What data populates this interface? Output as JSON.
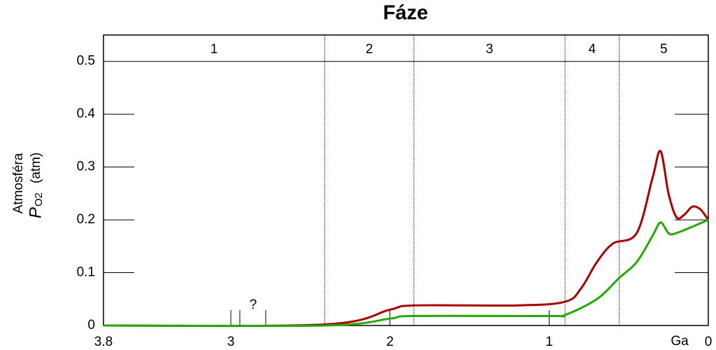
{
  "chart_data": {
    "type": "line",
    "title": "Fáze",
    "x_label": "Ga",
    "y_label": "Atmosféra",
    "y_label_symbol": "P",
    "y_label_subscript": "O2",
    "y_label_unit": "(atm)",
    "annotation": "?",
    "xlim": [
      3.8,
      0
    ],
    "ylim": [
      0,
      0.55
    ],
    "xticks": [
      {
        "value": 3.8,
        "label": "3.8"
      },
      3,
      2,
      1,
      0
    ],
    "yticks": [
      0,
      0.1,
      0.2,
      0.3,
      0.4,
      0.5
    ],
    "phase_labels": [
      "1",
      "2",
      "3",
      "4",
      "5"
    ],
    "phase_boundaries": [
      2.41,
      1.85,
      0.9,
      0.56
    ],
    "series": [
      {
        "color": "#aa0000",
        "x": [
          3.8,
          2.41,
          2.0,
          1.85,
          1.2,
          0.9,
          0.8,
          0.7,
          0.6,
          0.45,
          0.35,
          0.3,
          0.25,
          0.2,
          0.15,
          0.1,
          0.05,
          0
        ],
        "values": [
          0,
          0.002,
          0.03,
          0.038,
          0.038,
          0.045,
          0.07,
          0.12,
          0.155,
          0.175,
          0.28,
          0.33,
          0.25,
          0.205,
          0.21,
          0.225,
          0.22,
          0.2
        ]
      },
      {
        "color": "#22aa00",
        "x": [
          3.8,
          2.41,
          2.0,
          1.85,
          1.0,
          0.9,
          0.7,
          0.56,
          0.45,
          0.35,
          0.3,
          0.25,
          0.2,
          0
        ],
        "values": [
          0,
          0,
          0.013,
          0.018,
          0.018,
          0.02,
          0.05,
          0.09,
          0.12,
          0.17,
          0.195,
          0.175,
          0.175,
          0.2
        ]
      }
    ]
  }
}
